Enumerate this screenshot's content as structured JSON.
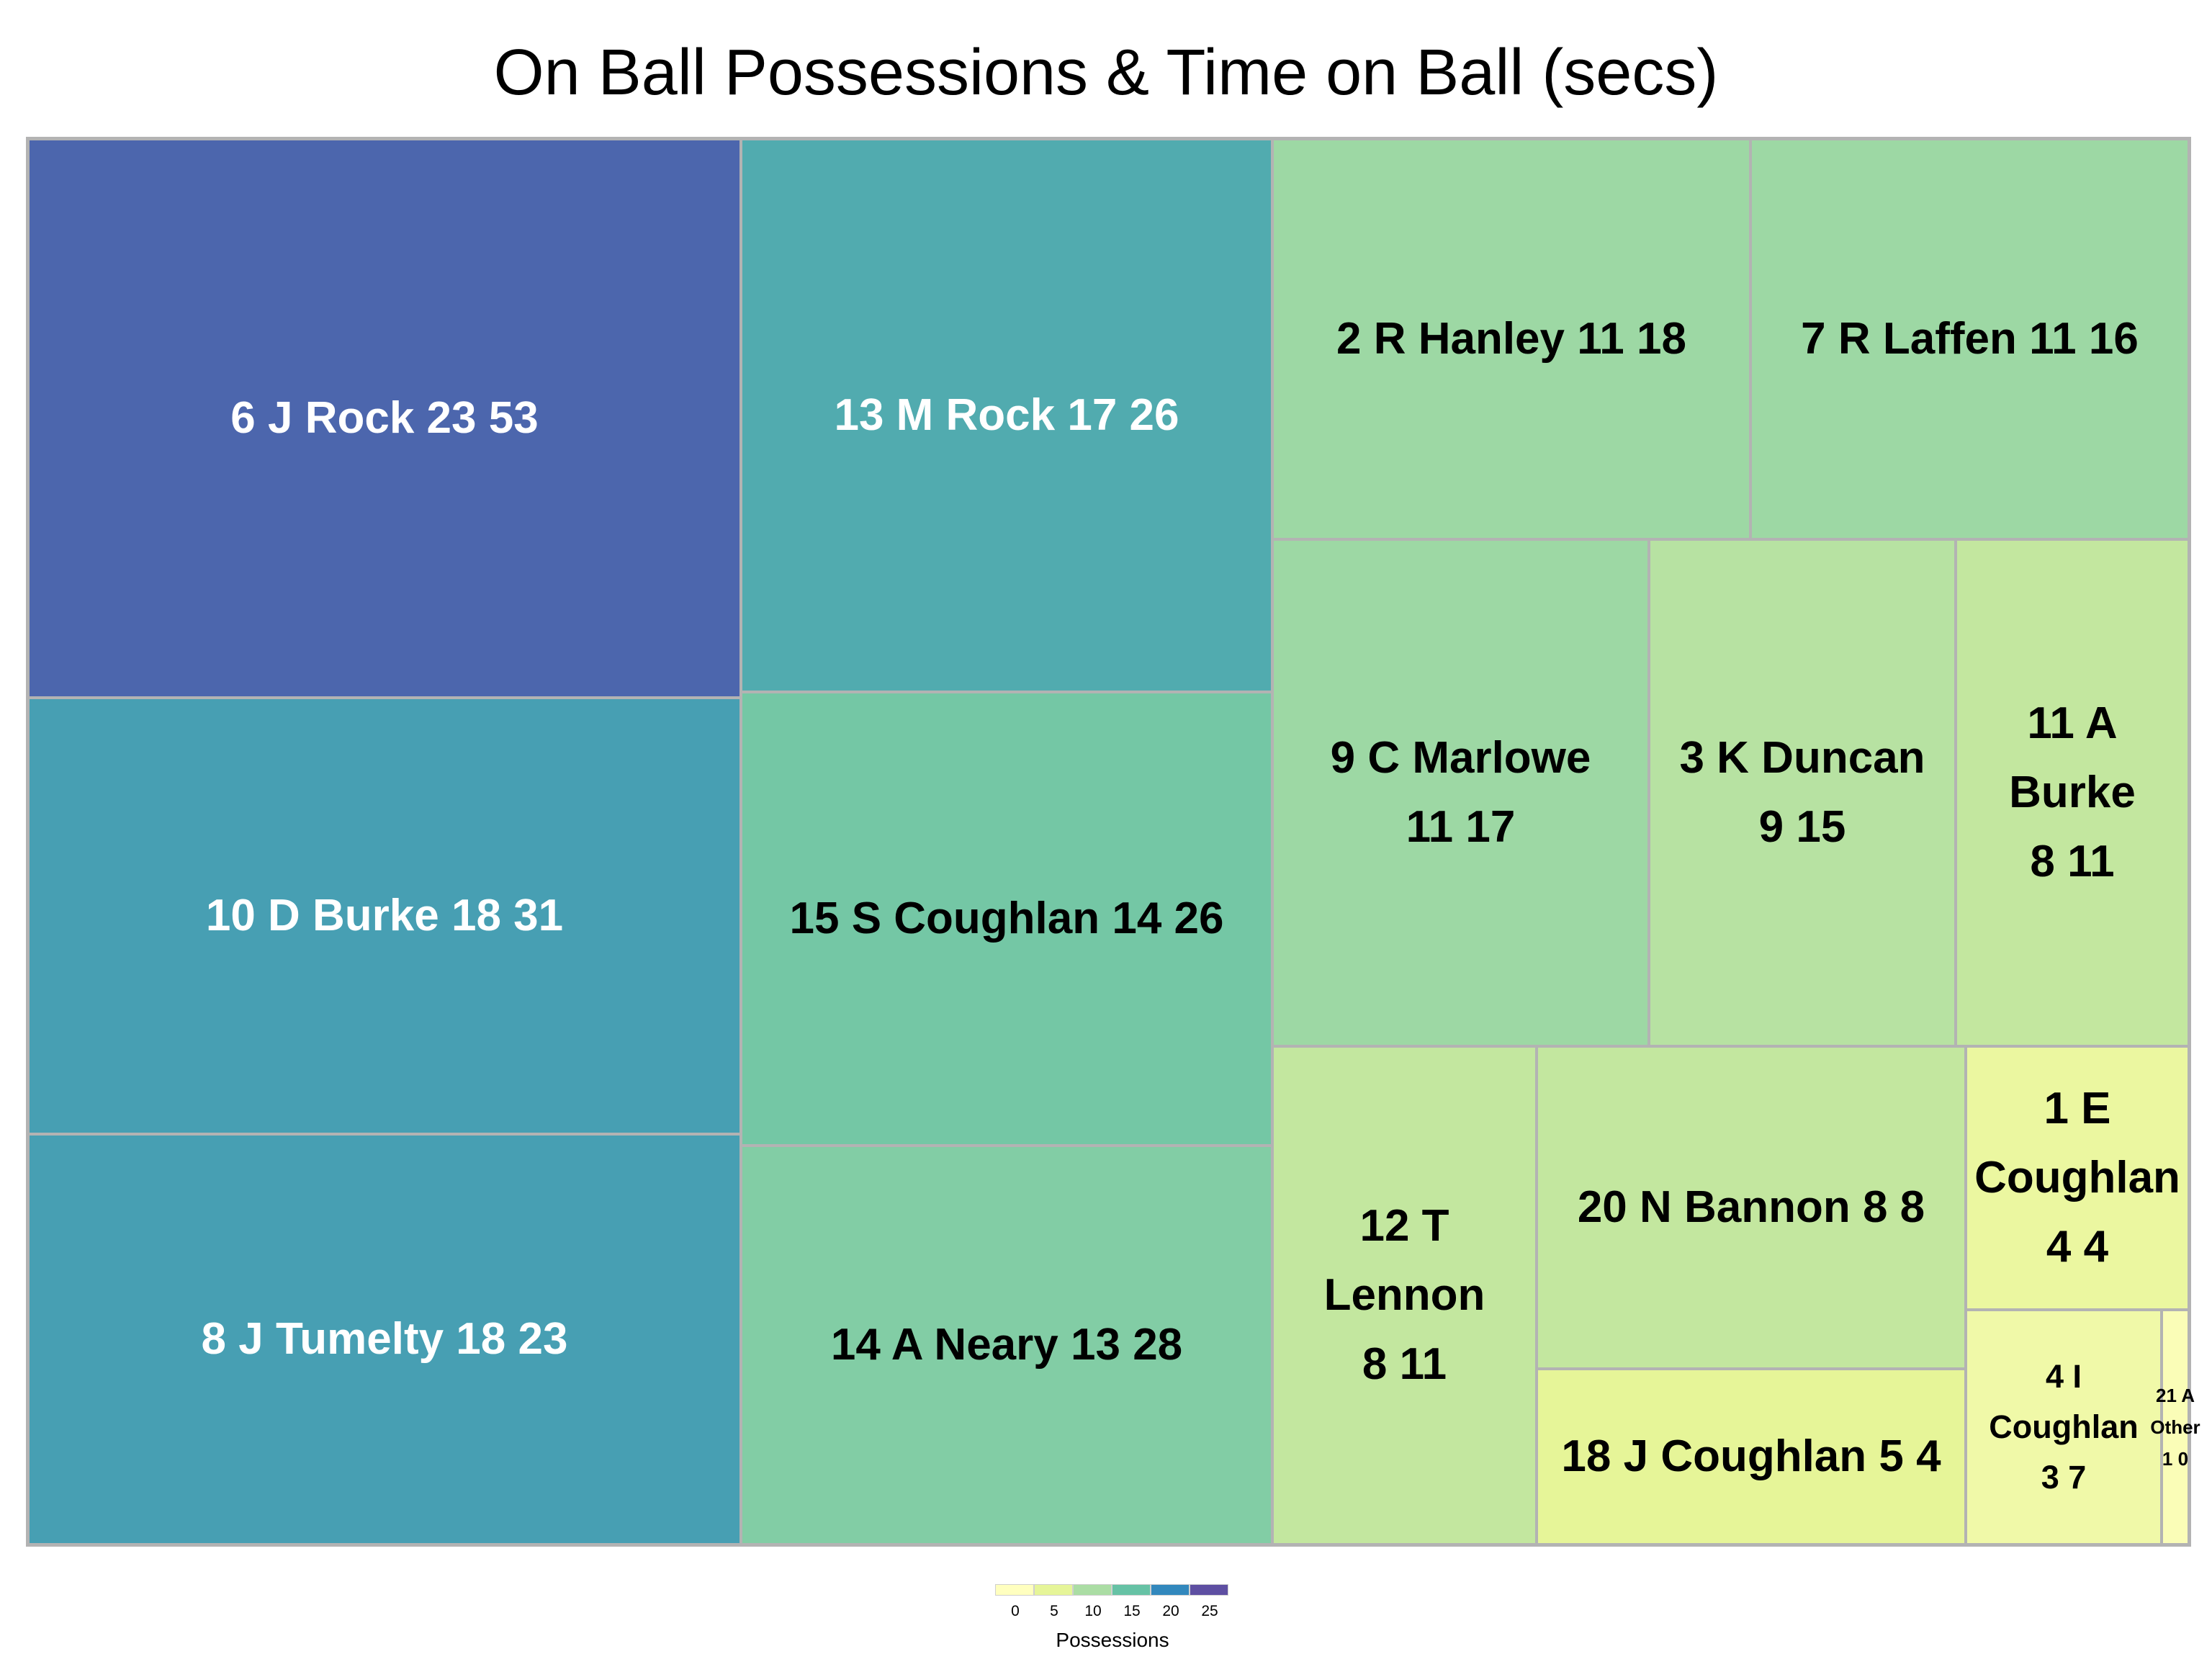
{
  "chart_data": {
    "type": "treemap",
    "title": "On Ball Possessions & Time on Ball (secs)",
    "size_variable": "Time on Ball (secs)",
    "color_variable": "Possessions",
    "items": [
      {
        "label": "6 J Rock 23 53",
        "possessions": 23,
        "time_on_ball": 53
      },
      {
        "label": "10 D Burke 18 31",
        "possessions": 18,
        "time_on_ball": 31
      },
      {
        "label": "8 J Tumelty 18 23",
        "possessions": 18,
        "time_on_ball": 23
      },
      {
        "label": "13 M Rock 17 26",
        "possessions": 17,
        "time_on_ball": 26
      },
      {
        "label": "15 S Coughlan 14 26",
        "possessions": 14,
        "time_on_ball": 26
      },
      {
        "label": "14 A Neary 13 28",
        "possessions": 13,
        "time_on_ball": 28
      },
      {
        "label": "2 R Hanley 11 18",
        "possessions": 11,
        "time_on_ball": 18
      },
      {
        "label": "7 R Laffen 11 16",
        "possessions": 11,
        "time_on_ball": 16
      },
      {
        "label": "9 C Marlowe 11 17",
        "possessions": 11,
        "time_on_ball": 17
      },
      {
        "label": "3 K Duncan 9 15",
        "possessions": 9,
        "time_on_ball": 15
      },
      {
        "label": "11 A Burke 8 11",
        "possessions": 8,
        "time_on_ball": 11
      },
      {
        "label": "12 T Lennon 8 11",
        "possessions": 8,
        "time_on_ball": 11
      },
      {
        "label": "20 N Bannon 8 8",
        "possessions": 8,
        "time_on_ball": 8
      },
      {
        "label": "18 J Coughlan 5 4",
        "possessions": 5,
        "time_on_ball": 4
      },
      {
        "label": "1 E Coughlan 4 4",
        "possessions": 4,
        "time_on_ball": 4
      },
      {
        "label": "4 I Coughlan 3 7",
        "possessions": 3,
        "time_on_ball": 7
      },
      {
        "label": "21 A Other 1 0",
        "possessions": 1,
        "time_on_ball": 0
      }
    ],
    "legend": {
      "title": "Possessions",
      "ticks": [
        "0",
        "5",
        "10",
        "15",
        "20",
        "25"
      ],
      "colors": [
        "#ffffbf",
        "#e6f598",
        "#abdda4",
        "#66c2a5",
        "#3288bd",
        "#5e4fa2"
      ]
    }
  }
}
